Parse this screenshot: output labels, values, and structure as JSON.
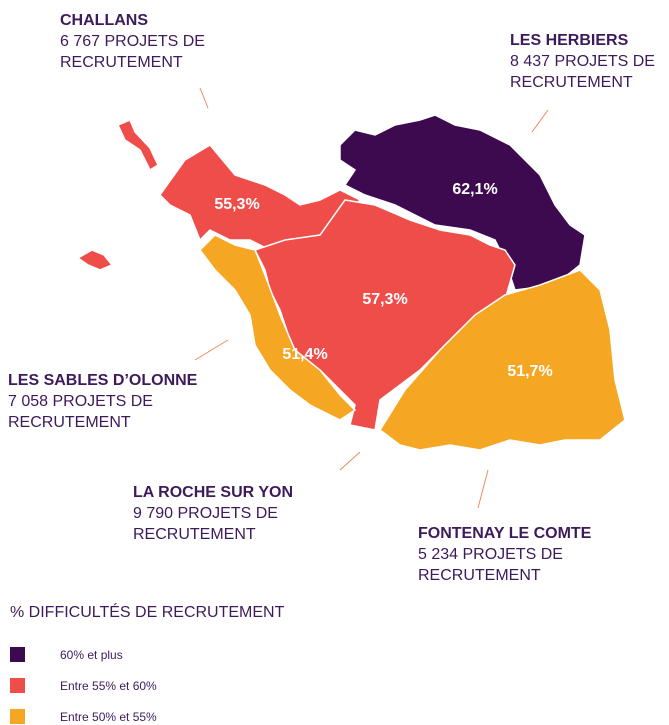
{
  "regions": [
    {
      "name": "CHALLANS",
      "projects": "6 767 PROJETS DE RECRUTEMENT",
      "rate": "55,3%"
    },
    {
      "name": "LES HERBIERS",
      "projects": "8 437 PROJETS DE RECRUTEMENT",
      "rate": "62,1%"
    },
    {
      "name": "LES SABLES D’OLONNE",
      "projects": "7 058 PROJETS DE RECRUTEMENT",
      "rate": "51,4%"
    },
    {
      "name": "LA ROCHE SUR YON",
      "projects": "9 790 PROJETS DE RECRUTEMENT",
      "rate": "57,3%"
    },
    {
      "name": "FONTENAY LE COMTE",
      "projects": "5 234 PROJETS DE RECRUTEMENT",
      "rate": "51,7%"
    }
  ],
  "legend": {
    "title": "% DIFFICULTÉS DE RECRUTEMENT",
    "items": [
      {
        "label": "60% et plus",
        "color": "#3d0a4f"
      },
      {
        "label": "Entre 55% et 60%",
        "color": "#ef4d4a"
      },
      {
        "label": "Entre 50% et 55%",
        "color": "#f5a623"
      }
    ]
  }
}
